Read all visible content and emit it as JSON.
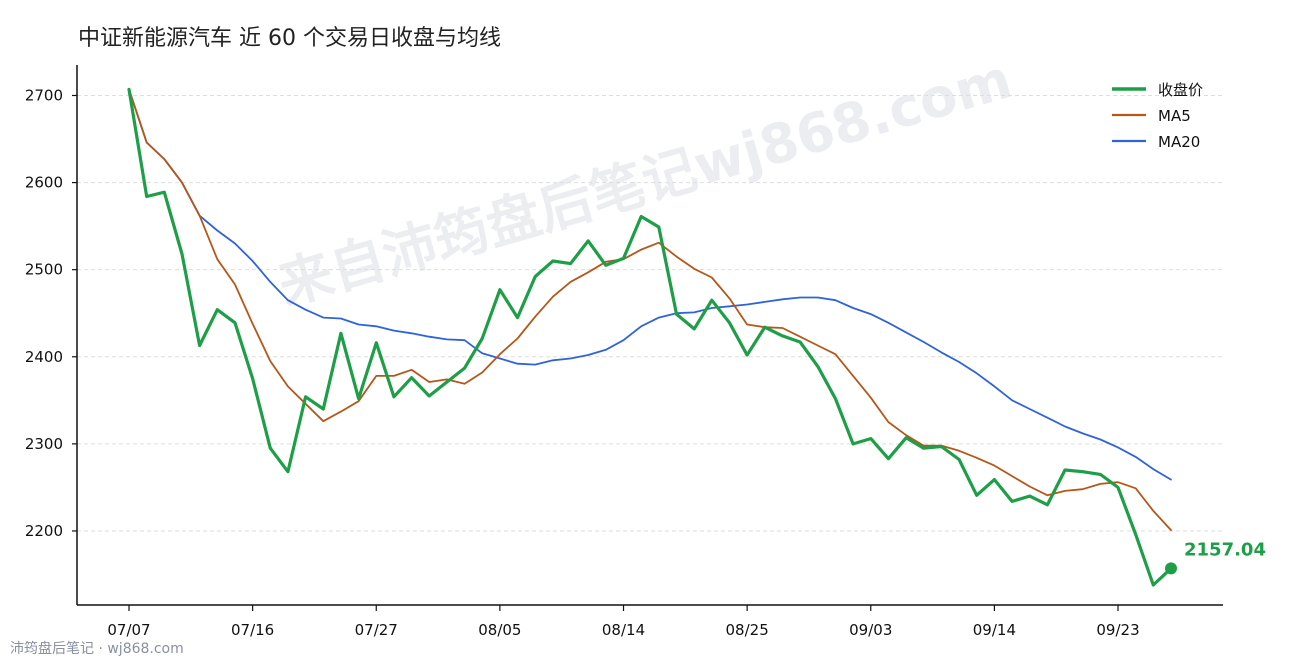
{
  "chart_data": {
    "type": "line",
    "title": "中证新能源汽车 近 60 个交易日收盘与均线",
    "xlabel": "",
    "ylabel": "",
    "ylim": [
      2115,
      2735
    ],
    "yticks": [
      2200,
      2300,
      2400,
      2500,
      2600,
      2700
    ],
    "x_tick_labels": [
      "07/07",
      "07/16",
      "07/27",
      "08/05",
      "08/14",
      "08/25",
      "09/03",
      "09/14",
      "09/23"
    ],
    "x_tick_indices": [
      0,
      7,
      14,
      21,
      28,
      35,
      42,
      49,
      56
    ],
    "grid": "horizontal-dashed",
    "legend_position": "top-right",
    "end_label": "2157.04",
    "series": [
      {
        "name": "收盘价",
        "color": "#1e9e47",
        "values": [
          2707,
          2584,
          2589,
          2518,
          2413,
          2454,
          2439,
          2375,
          2295,
          2268,
          2354,
          2340,
          2427,
          2352,
          2416,
          2354,
          2376,
          2355,
          2371,
          2387,
          2421,
          2477,
          2445,
          2492,
          2510,
          2507,
          2533,
          2505,
          2513,
          2561,
          2549,
          2449,
          2432,
          2465,
          2439,
          2402,
          2434,
          2424,
          2417,
          2389,
          2352,
          2300,
          2306,
          2283,
          2307,
          2295,
          2297,
          2282,
          2241,
          2259,
          2234,
          2240,
          2230,
          2270,
          2268,
          2265,
          2250,
          2196,
          2138,
          2157.04
        ]
      },
      {
        "name": "MA5",
        "color": "#b5571a",
        "values": [
          2707,
          2646,
          2627,
          2600,
          2562,
          2512,
          2483,
          2438,
          2395,
          2366,
          2346,
          2326,
          2337,
          2349,
          2378,
          2378,
          2385,
          2371,
          2374,
          2369,
          2382,
          2403,
          2421,
          2446,
          2469,
          2486,
          2497,
          2509,
          2512,
          2523,
          2531,
          2515,
          2501,
          2491,
          2467,
          2437,
          2434,
          2433,
          2423,
          2413,
          2403,
          2378,
          2353,
          2325,
          2310,
          2298,
          2298,
          2292,
          2284,
          2275,
          2263,
          2251,
          2241,
          2246,
          2248,
          2254,
          2256,
          2249,
          2223,
          2201
        ]
      },
      {
        "name": "MA20",
        "color": "#2f63d8",
        "values": [
          2707,
          2646,
          2627,
          2600,
          2562,
          2545,
          2530,
          2510,
          2486,
          2465,
          2454,
          2445,
          2444,
          2437,
          2435,
          2430,
          2427,
          2423,
          2420,
          2419,
          2404,
          2398,
          2392,
          2391,
          2396,
          2398,
          2402,
          2408,
          2419,
          2435,
          2445,
          2450,
          2451,
          2456,
          2458,
          2460,
          2463,
          2466,
          2468,
          2468,
          2465,
          2456,
          2449,
          2439,
          2428,
          2417,
          2405,
          2394,
          2381,
          2366,
          2350,
          2340,
          2330,
          2320,
          2312,
          2305,
          2296,
          2285,
          2271,
          2259
        ]
      }
    ]
  },
  "watermark_text": "来自沛筠盘后笔记wj868.com",
  "footer_text": "沛筠盘后笔记 · wj868.com"
}
